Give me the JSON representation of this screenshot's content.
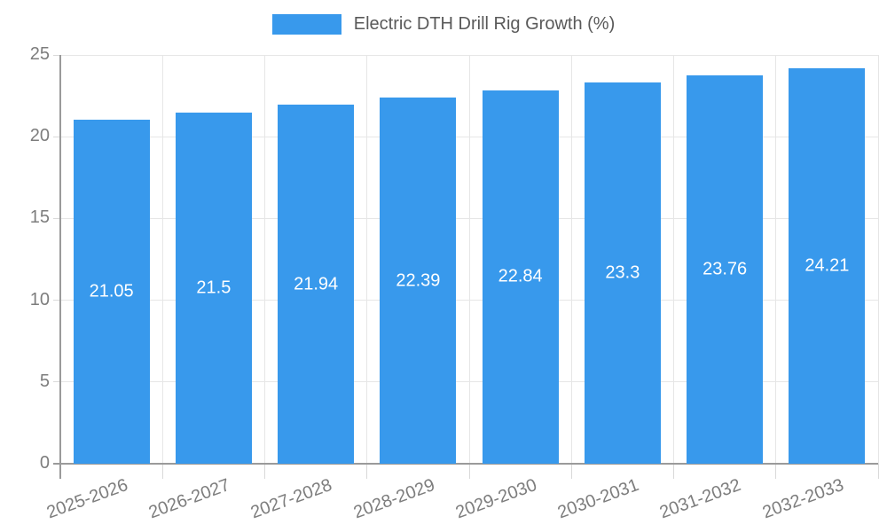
{
  "legend": {
    "label": "Electric DTH Drill Rig Growth (%)"
  },
  "chart_data": {
    "type": "bar",
    "title": "Electric DTH Drill Rig Growth (%)",
    "series_name": "Electric DTH Drill Rig Growth (%)",
    "categories": [
      "2025-2026",
      "2026-2027",
      "2027-2028",
      "2028-2029",
      "2029-2030",
      "2030-2031",
      "2031-2032",
      "2032-2033"
    ],
    "values": [
      21.05,
      21.5,
      21.94,
      22.39,
      22.84,
      23.3,
      23.76,
      24.21
    ],
    "value_labels": [
      "21.05",
      "21.5",
      "21.94",
      "22.39",
      "22.84",
      "23.3",
      "23.76",
      "24.21"
    ],
    "xlabel": "",
    "ylabel": "",
    "ylim": [
      0,
      25
    ],
    "yticks": [
      0,
      5,
      10,
      15,
      20,
      25
    ],
    "grid": true,
    "legend_position": "top-center",
    "x_tick_rotation_deg": -20,
    "colors": {
      "bar": "#3899ec",
      "value_label": "#ffffff",
      "axis_line": "#9a9a9a",
      "grid_line": "#e6e6e6",
      "tick_mark": "#d9d9d9",
      "axis_label": "#7d7d7d",
      "legend_text": "#595959"
    }
  }
}
